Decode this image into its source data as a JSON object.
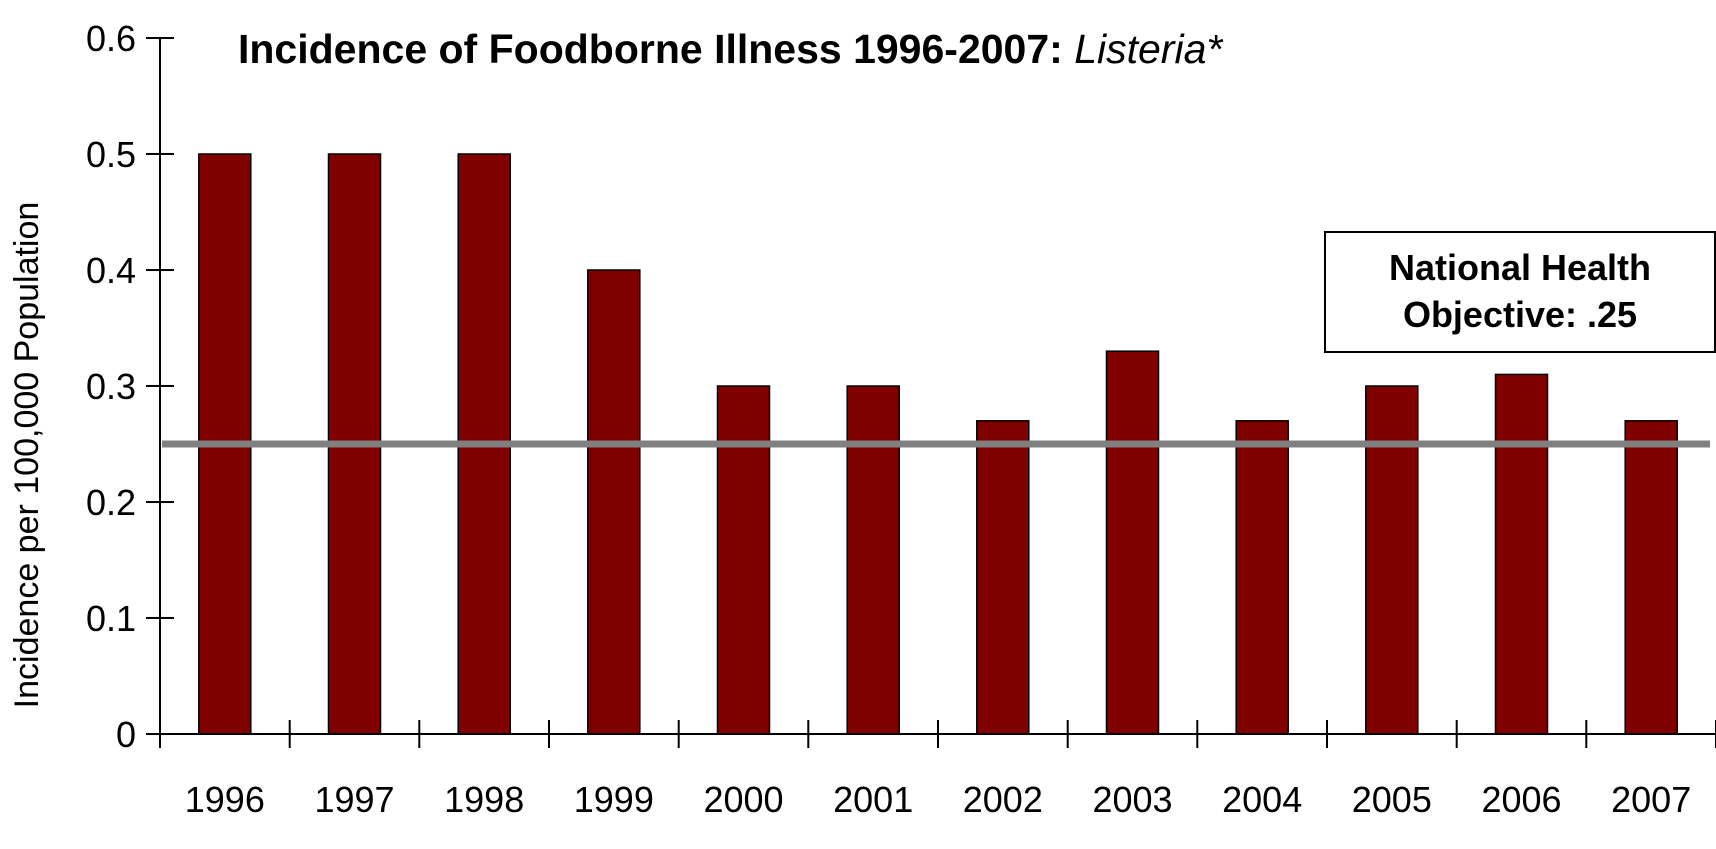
{
  "chart_data": {
    "type": "bar",
    "title": "Incidence of Foodborne Illness 1996-2007: ",
    "title_italic": "Listeria*",
    "xlabel": "",
    "ylabel": "Incidence per 100,000 Population",
    "categories": [
      "1996",
      "1997",
      "1998",
      "1999",
      "2000",
      "2001",
      "2002",
      "2003",
      "2004",
      "2005",
      "2006",
      "2007"
    ],
    "values": [
      0.5,
      0.5,
      0.5,
      0.4,
      0.3,
      0.3,
      0.27,
      0.33,
      0.27,
      0.3,
      0.31,
      0.27
    ],
    "ylim": [
      0,
      0.6
    ],
    "yticks": [
      "0",
      "0.1",
      "0.2",
      "0.3",
      "0.4",
      "0.5",
      "0.6"
    ],
    "grid": false,
    "bar_color": "#800000",
    "reference_line": {
      "value": 0.25,
      "color": "#808080"
    },
    "annotation": {
      "line1": "National Health",
      "line2": "Objective: .25"
    }
  }
}
